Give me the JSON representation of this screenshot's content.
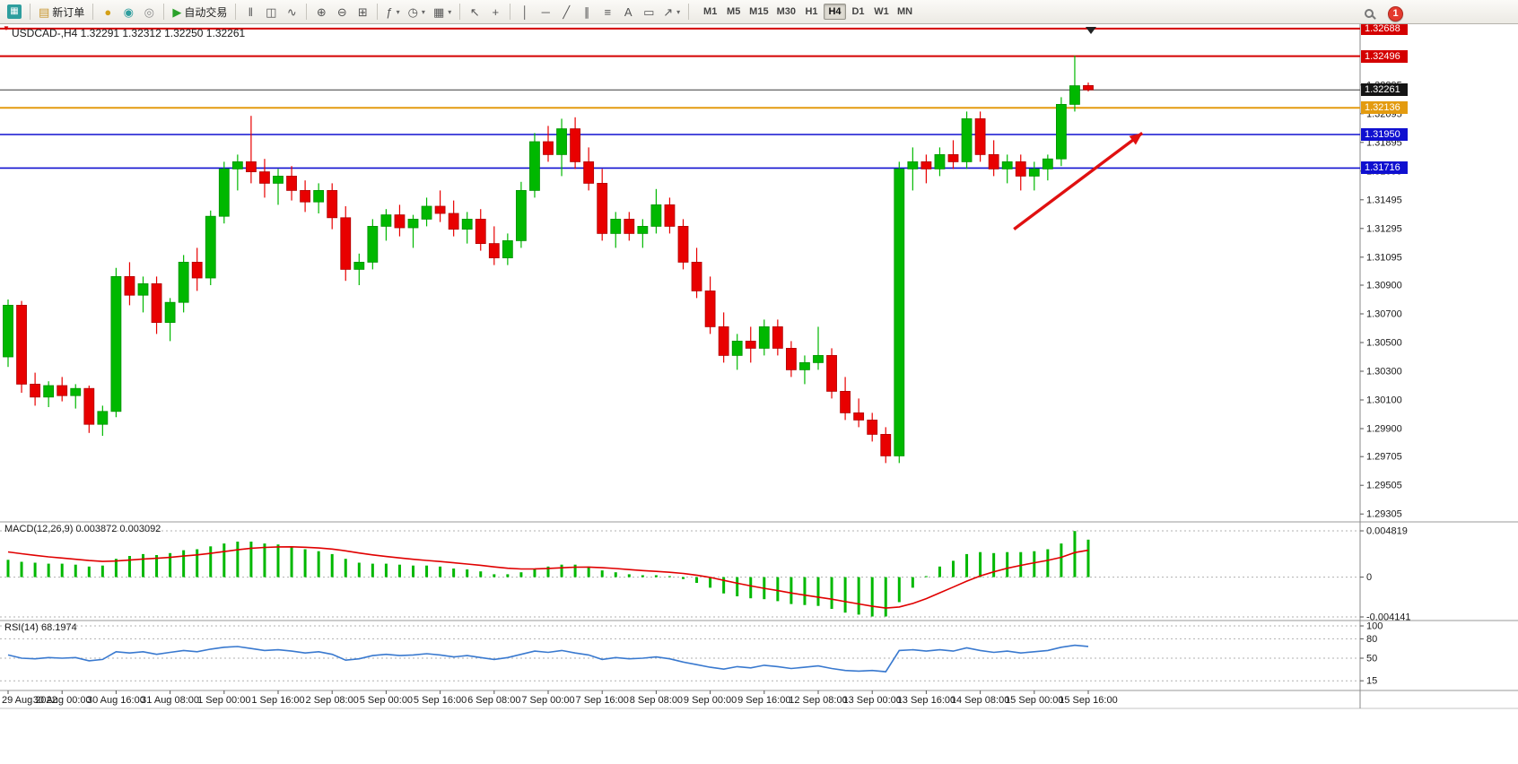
{
  "toolbar": {
    "groups": [
      {
        "items": [
          {
            "name": "chart-window-icon",
            "glyph": "▦",
            "fg": "#ffffff",
            "bg": "#2e9e9e"
          }
        ]
      },
      {
        "items": [
          {
            "name": "new-order-button",
            "glyph": "▤",
            "fg": "#c8962f",
            "label": "新订单"
          }
        ]
      },
      {
        "items": [
          {
            "name": "market-coin-icon",
            "glyph": "●",
            "fg": "#d4a017"
          },
          {
            "name": "signals-icon",
            "glyph": "◉",
            "fg": "#2e9e9e"
          },
          {
            "name": "community-icon",
            "glyph": "◎",
            "fg": "#8a8a8a"
          }
        ]
      },
      {
        "items": [
          {
            "name": "autotrade-button",
            "glyph": "▶",
            "fg": "#2aa12a",
            "label": "自动交易"
          }
        ]
      },
      {
        "items": [
          {
            "name": "bar-chart-icon",
            "glyph": "‖"
          },
          {
            "name": "candlestick-chart-icon",
            "glyph": "◫"
          },
          {
            "name": "line-chart-icon",
            "glyph": "∿"
          }
        ]
      },
      {
        "items": [
          {
            "name": "zoom-in-icon",
            "glyph": "⊕"
          },
          {
            "name": "zoom-out-icon",
            "glyph": "⊖"
          },
          {
            "name": "tile-windows-icon",
            "glyph": "⊞"
          }
        ]
      },
      {
        "items": [
          {
            "name": "indicators-icon",
            "glyph": "ƒ",
            "caret": true
          },
          {
            "name": "periods-icon",
            "glyph": "◷",
            "caret": true
          },
          {
            "name": "templates-icon",
            "glyph": "▦",
            "caret": true
          }
        ]
      },
      {
        "items": [
          {
            "name": "cursor-icon",
            "glyph": "↖"
          },
          {
            "name": "crosshair-icon",
            "glyph": "+"
          }
        ]
      },
      {
        "items": [
          {
            "name": "vertical-line-icon",
            "glyph": "│"
          },
          {
            "name": "horizontal-line-icon",
            "glyph": "─"
          },
          {
            "name": "trendline-icon",
            "glyph": "╱"
          },
          {
            "name": "equidistant-channel-icon",
            "glyph": "∥"
          },
          {
            "name": "fibonacci-icon",
            "glyph": "≡"
          },
          {
            "name": "text-icon",
            "glyph": "A"
          },
          {
            "name": "text-label-icon",
            "glyph": "▭"
          },
          {
            "name": "arrow-tools-icon",
            "glyph": "↗",
            "caret": true
          }
        ]
      }
    ],
    "timeframes": [
      "M1",
      "M5",
      "M15",
      "M30",
      "H1",
      "H4",
      "D1",
      "W1",
      "MN"
    ],
    "active_timeframe": "H4",
    "notification_count": "1"
  },
  "chart_data": {
    "type": "candlestick",
    "symbol": "USDCAD-",
    "timeframe": "H4",
    "info_label": "USDCAD-,H4  1.32291 1.32312 1.32250 1.32261",
    "ohlc_current": {
      "open": "1.32291",
      "high": "1.32312",
      "low": "1.32250",
      "close": "1.32261"
    },
    "price_range_visible": [
      1.293,
      1.327
    ],
    "up_color": "#00b800",
    "up_border": "#009200",
    "down_color": "#e80000",
    "down_border": "#b00000",
    "price_axis_labels": [
      "1.32295",
      "1.32095",
      "1.31895",
      "1.31695",
      "1.31495",
      "1.31295",
      "1.31095",
      "1.30900",
      "1.30700",
      "1.30500",
      "1.30300",
      "1.30100",
      "1.29900",
      "1.29705",
      "1.29505",
      "1.29305"
    ],
    "price_badges": [
      {
        "text": "1.32688",
        "price": 1.32688,
        "color": "#d40000"
      },
      {
        "text": "1.32496",
        "price": 1.32496,
        "color": "#d40000"
      },
      {
        "text": "1.32261",
        "price": 1.32261,
        "color": "#151515"
      },
      {
        "text": "1.32136",
        "price": 1.32136,
        "color": "#e39b10"
      },
      {
        "text": "1.31950",
        "price": 1.3195,
        "color": "#1010d0"
      },
      {
        "text": "1.31716",
        "price": 1.31716,
        "color": "#1010d0"
      }
    ],
    "hlines": [
      {
        "price": 1.32688,
        "color": "#d40000",
        "width": 2
      },
      {
        "price": 1.32496,
        "color": "#d40000",
        "width": 2
      },
      {
        "price": 1.32261,
        "color": "#3a3a3a",
        "width": 1
      },
      {
        "price": 1.32136,
        "color": "#e39b10",
        "width": 2
      },
      {
        "price": 1.3195,
        "color": "#1010d0",
        "width": 1.6
      },
      {
        "price": 1.31716,
        "color": "#1010d0",
        "width": 1.6
      }
    ],
    "time_labels": [
      "29 Aug 2022",
      "30 Aug 00:00",
      "30 Aug 16:00",
      "31 Aug 08:00",
      "1 Sep 00:00",
      "1 Sep 16:00",
      "2 Sep 08:00",
      "5 Sep 00:00",
      "5 Sep 16:00",
      "6 Sep 08:00",
      "7 Sep 00:00",
      "7 Sep 16:00",
      "8 Sep 08:00",
      "9 Sep 00:00",
      "9 Sep 16:00",
      "12 Sep 08:00",
      "13 Sep 00:00",
      "13 Sep 16:00",
      "14 Sep 08:00",
      "15 Sep 00:00",
      "15 Sep 16:00"
    ],
    "candles": [
      [
        1.304,
        1.308,
        1.3033,
        1.3076
      ],
      [
        1.3076,
        1.3079,
        1.3015,
        1.3021
      ],
      [
        1.3021,
        1.3029,
        1.3006,
        1.3012
      ],
      [
        1.3012,
        1.3023,
        1.3005,
        1.302
      ],
      [
        1.302,
        1.3026,
        1.3009,
        1.3013
      ],
      [
        1.3013,
        1.3021,
        1.3004,
        1.3018
      ],
      [
        1.3018,
        1.302,
        1.2987,
        1.2993
      ],
      [
        1.2993,
        1.3006,
        1.2985,
        1.3002
      ],
      [
        1.3002,
        1.3102,
        1.2998,
        1.3096
      ],
      [
        1.3096,
        1.3106,
        1.3076,
        1.3083
      ],
      [
        1.3083,
        1.3096,
        1.3071,
        1.3091
      ],
      [
        1.3091,
        1.3096,
        1.3056,
        1.3064
      ],
      [
        1.3064,
        1.3081,
        1.3051,
        1.3078
      ],
      [
        1.3078,
        1.3111,
        1.3071,
        1.3106
      ],
      [
        1.3106,
        1.3116,
        1.3086,
        1.3095
      ],
      [
        1.3095,
        1.3142,
        1.309,
        1.3138
      ],
      [
        1.3138,
        1.3176,
        1.3133,
        1.3171
      ],
      [
        1.3171,
        1.3181,
        1.3156,
        1.3176
      ],
      [
        1.3176,
        1.3208,
        1.3161,
        1.3169
      ],
      [
        1.3169,
        1.3178,
        1.3151,
        1.3161
      ],
      [
        1.3161,
        1.3171,
        1.3146,
        1.3166
      ],
      [
        1.3166,
        1.3173,
        1.3149,
        1.3156
      ],
      [
        1.3156,
        1.3163,
        1.3141,
        1.3148
      ],
      [
        1.3148,
        1.3161,
        1.314,
        1.3156
      ],
      [
        1.3156,
        1.3161,
        1.3129,
        1.3137
      ],
      [
        1.3137,
        1.3145,
        1.3093,
        1.3101
      ],
      [
        1.3101,
        1.3112,
        1.309,
        1.3106
      ],
      [
        1.3106,
        1.3136,
        1.3101,
        1.3131
      ],
      [
        1.3131,
        1.3143,
        1.3121,
        1.3139
      ],
      [
        1.3139,
        1.3146,
        1.3124,
        1.313
      ],
      [
        1.313,
        1.3139,
        1.3116,
        1.3136
      ],
      [
        1.3136,
        1.3151,
        1.3131,
        1.3145
      ],
      [
        1.3145,
        1.3156,
        1.3134,
        1.314
      ],
      [
        1.314,
        1.3149,
        1.3124,
        1.3129
      ],
      [
        1.3129,
        1.3141,
        1.3119,
        1.3136
      ],
      [
        1.3136,
        1.3143,
        1.3114,
        1.3119
      ],
      [
        1.3119,
        1.3131,
        1.3104,
        1.3109
      ],
      [
        1.3109,
        1.3126,
        1.3104,
        1.3121
      ],
      [
        1.3121,
        1.3162,
        1.3116,
        1.3156
      ],
      [
        1.3156,
        1.3196,
        1.3151,
        1.319
      ],
      [
        1.319,
        1.3201,
        1.3176,
        1.3181
      ],
      [
        1.3181,
        1.3206,
        1.3166,
        1.3199
      ],
      [
        1.3199,
        1.3207,
        1.3171,
        1.3176
      ],
      [
        1.3176,
        1.3186,
        1.3156,
        1.3161
      ],
      [
        1.3161,
        1.3171,
        1.3121,
        1.3126
      ],
      [
        1.3126,
        1.3141,
        1.3116,
        1.3136
      ],
      [
        1.3136,
        1.3141,
        1.3121,
        1.3126
      ],
      [
        1.3126,
        1.3136,
        1.3116,
        1.3131
      ],
      [
        1.3131,
        1.3157,
        1.3126,
        1.3146
      ],
      [
        1.3146,
        1.3151,
        1.3126,
        1.3131
      ],
      [
        1.3131,
        1.3136,
        1.3101,
        1.3106
      ],
      [
        1.3106,
        1.3116,
        1.3081,
        1.3086
      ],
      [
        1.3086,
        1.3096,
        1.3056,
        1.3061
      ],
      [
        1.3061,
        1.3071,
        1.3036,
        1.3041
      ],
      [
        1.3041,
        1.3056,
        1.3031,
        1.3051
      ],
      [
        1.3051,
        1.3061,
        1.3036,
        1.3046
      ],
      [
        1.3046,
        1.3066,
        1.3041,
        1.3061
      ],
      [
        1.3061,
        1.3066,
        1.3041,
        1.3046
      ],
      [
        1.3046,
        1.3051,
        1.3026,
        1.3031
      ],
      [
        1.3031,
        1.3041,
        1.3021,
        1.3036
      ],
      [
        1.3036,
        1.3061,
        1.3031,
        1.3041
      ],
      [
        1.3041,
        1.3046,
        1.3011,
        1.3016
      ],
      [
        1.3016,
        1.3026,
        1.2996,
        1.3001
      ],
      [
        1.3001,
        1.3011,
        1.2991,
        1.2996
      ],
      [
        1.2996,
        1.3001,
        1.2981,
        1.2986
      ],
      [
        1.2986,
        1.2991,
        1.2966,
        1.2971
      ],
      [
        1.2971,
        1.3176,
        1.2966,
        1.3171
      ],
      [
        1.3171,
        1.3186,
        1.3156,
        1.3176
      ],
      [
        1.3176,
        1.3181,
        1.3161,
        1.3171
      ],
      [
        1.3171,
        1.3186,
        1.3166,
        1.3181
      ],
      [
        1.3181,
        1.3191,
        1.3171,
        1.3176
      ],
      [
        1.3176,
        1.3211,
        1.3171,
        1.3206
      ],
      [
        1.3206,
        1.3211,
        1.3176,
        1.3181
      ],
      [
        1.3181,
        1.3191,
        1.3166,
        1.3171
      ],
      [
        1.3171,
        1.3181,
        1.3161,
        1.3176
      ],
      [
        1.3176,
        1.3181,
        1.3156,
        1.3166
      ],
      [
        1.3166,
        1.3176,
        1.3156,
        1.3171
      ],
      [
        1.3171,
        1.3181,
        1.3163,
        1.3178
      ],
      [
        1.3178,
        1.3221,
        1.3173,
        1.3216
      ],
      [
        1.3216,
        1.325,
        1.3211,
        1.3229
      ],
      [
        1.32291,
        1.32312,
        1.3225,
        1.32261
      ]
    ],
    "arrow": {
      "from_candle": 74.5,
      "from_price": 1.3129,
      "to_candle": 84,
      "to_price": 1.3196,
      "color": "#e01010"
    },
    "macd": {
      "label": "MACD(12,26,9)",
      "values_label": "0.003872 0.003092",
      "axis_max": "0.004819",
      "axis_zero": "0",
      "axis_min": "-0.004141",
      "histogram_color": "#00b800",
      "signal_color": "#e00000",
      "histogram": [
        0.0018,
        0.0016,
        0.0015,
        0.0014,
        0.0014,
        0.0013,
        0.0011,
        0.0012,
        0.0019,
        0.0022,
        0.0024,
        0.0023,
        0.0025,
        0.0028,
        0.0029,
        0.0032,
        0.0035,
        0.0037,
        0.0037,
        0.0035,
        0.0034,
        0.0032,
        0.0029,
        0.0027,
        0.0024,
        0.0019,
        0.0015,
        0.0014,
        0.0014,
        0.0013,
        0.0012,
        0.0012,
        0.0011,
        0.0009,
        0.0008,
        0.0006,
        0.0003,
        0.0003,
        0.0005,
        0.0009,
        0.0011,
        0.0013,
        0.0013,
        0.0011,
        0.0007,
        0.0005,
        0.0003,
        0.0002,
        0.0002,
        0.0001,
        -0.0002,
        -0.0006,
        -0.0011,
        -0.0017,
        -0.002,
        -0.0022,
        -0.0023,
        -0.0025,
        -0.0028,
        -0.0029,
        -0.003,
        -0.0033,
        -0.0037,
        -0.0039,
        -0.0041,
        -0.0041,
        -0.0026,
        -0.0011,
        0.0001,
        0.0011,
        0.0017,
        0.0024,
        0.0026,
        0.0025,
        0.0026,
        0.0026,
        0.0027,
        0.0029,
        0.0035,
        0.0048,
        0.0039
      ]
    },
    "rsi": {
      "label": "RSI(14)",
      "value_label": "68.1974",
      "axis_labels": [
        "100",
        "80",
        "50",
        "15"
      ],
      "levels": [
        100,
        80,
        50,
        15
      ],
      "line_color": "#3979cf",
      "values": [
        55,
        50,
        49,
        51,
        50,
        51,
        46,
        48,
        60,
        58,
        60,
        56,
        59,
        62,
        60,
        64,
        67,
        68,
        65,
        62,
        63,
        61,
        58,
        60,
        56,
        47,
        49,
        54,
        56,
        54,
        55,
        57,
        55,
        52,
        54,
        51,
        48,
        51,
        56,
        61,
        59,
        62,
        58,
        55,
        48,
        51,
        49,
        50,
        52,
        49,
        44,
        40,
        36,
        33,
        37,
        35,
        39,
        37,
        34,
        36,
        38,
        34,
        31,
        30,
        31,
        29,
        62,
        63,
        61,
        63,
        61,
        66,
        62,
        59,
        61,
        58,
        60,
        62,
        67,
        70,
        68.2
      ]
    }
  }
}
